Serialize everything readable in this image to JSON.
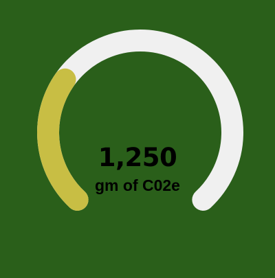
{
  "gauge": {
    "value_text": "1,250",
    "unit_text": "gm of C02e",
    "fill_fraction": 0.3,
    "colors": {
      "background": "#2a5f1a",
      "track": "#f0f0f0",
      "fill": "#c8be44",
      "text": "#000000"
    }
  }
}
